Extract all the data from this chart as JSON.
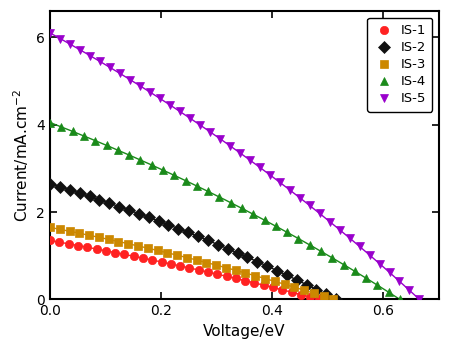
{
  "title": "",
  "xlabel": "Voltage/eV",
  "ylabel": "Current/mA.cm$^{-2}$",
  "xlim": [
    0.0,
    0.7
  ],
  "ylim": [
    0.0,
    6.6
  ],
  "xticks": [
    0.0,
    0.2,
    0.4,
    0.6
  ],
  "yticks": [
    0,
    2,
    4,
    6
  ],
  "series": [
    {
      "label": "IS-1",
      "color": "#ff2222",
      "marker": "o",
      "Jsc": 1.35,
      "Voc": 0.485,
      "n": 45,
      "num_markers": 30
    },
    {
      "label": "IS-2",
      "color": "#111111",
      "marker": "D",
      "Jsc": 2.65,
      "Voc": 0.515,
      "n": 40,
      "num_markers": 30
    },
    {
      "label": "IS-3",
      "color": "#cc8800",
      "marker": "s",
      "Jsc": 1.65,
      "Voc": 0.51,
      "n": 38,
      "num_markers": 30
    },
    {
      "label": "IS-4",
      "color": "#1a8a1a",
      "marker": "^",
      "Jsc": 4.05,
      "Voc": 0.63,
      "n": 48,
      "num_markers": 32
    },
    {
      "label": "IS-5",
      "color": "#9900cc",
      "marker": "v",
      "Jsc": 6.1,
      "Voc": 0.665,
      "n": 50,
      "num_markers": 38
    }
  ],
  "marker_size": 6,
  "linewidth": 1.0,
  "figure_bg": "#ffffff",
  "axes_bg": "#ffffff",
  "legend_fontsize": 9.5,
  "label_fontsize": 11,
  "tick_fontsize": 10
}
